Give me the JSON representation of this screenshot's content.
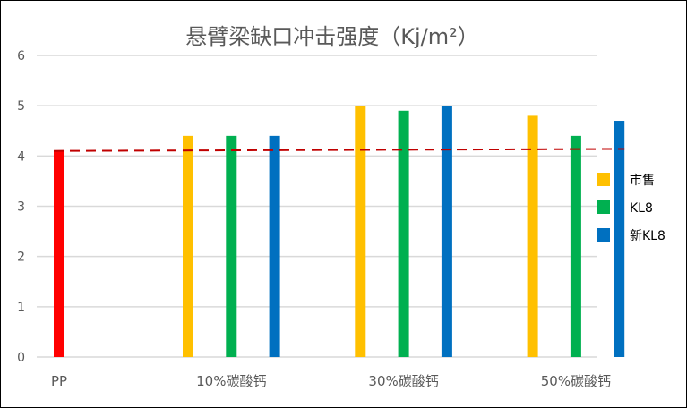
{
  "chart_data": {
    "type": "bar",
    "title": "悬臂梁缺口冲击强度（Kj/m²）",
    "categories": [
      "PP",
      "10%碳酸钙",
      "30%碳酸钙",
      "50%碳酸钙"
    ],
    "ylim": [
      0,
      6
    ],
    "yticks": [
      "0",
      "1",
      "2",
      "3",
      "4",
      "5",
      "6"
    ],
    "grid": true,
    "legend_position": "right",
    "baseline": {
      "name": "PP",
      "value": 4.1,
      "color": "#FF0000"
    },
    "series": [
      {
        "name": "市售",
        "color": "#FFC000",
        "values": [
          null,
          4.4,
          5.0,
          4.8
        ]
      },
      {
        "name": "KL8",
        "color": "#00B050",
        "values": [
          null,
          4.4,
          4.9,
          4.4
        ]
      },
      {
        "name": "新KL8",
        "color": "#0070C0",
        "values": [
          null,
          4.4,
          5.0,
          4.7
        ]
      }
    ],
    "trendline": {
      "color": "#C00000",
      "start": 4.1,
      "end": 4.14,
      "style": "dashed"
    }
  }
}
